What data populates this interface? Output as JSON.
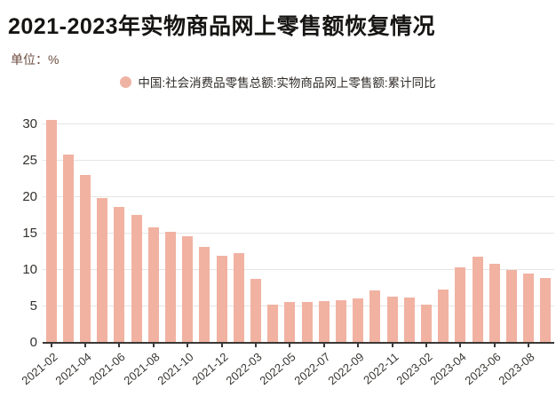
{
  "header": {
    "title": "2021-2023年实物商品网上零售额恢复情况",
    "unit_label": "单位：%"
  },
  "legend": {
    "series_label": "中国:社会消费品零售总额:实物商品网上零售额:累计同比",
    "marker_color": "#efb3a3"
  },
  "chart_data": {
    "type": "bar",
    "title": "2021-2023年实物商品网上零售额恢复情况",
    "xlabel": "",
    "ylabel": "%",
    "ylim": [
      0,
      31
    ],
    "yticks": [
      0,
      5,
      10,
      15,
      20,
      25,
      30
    ],
    "grid": true,
    "legend_position": "top",
    "bar_color": "#f1b2a2",
    "x_label_every": 2,
    "categories": [
      "2021-02",
      "2021-03",
      "2021-04",
      "2021-05",
      "2021-06",
      "2021-07",
      "2021-08",
      "2021-09",
      "2021-10",
      "2021-11",
      "2021-12",
      "2022-02",
      "2022-03",
      "2022-04",
      "2022-05",
      "2022-06",
      "2022-07",
      "2022-08",
      "2022-09",
      "2022-10",
      "2022-11",
      "2022-12",
      "2023-02",
      "2023-03",
      "2023-04",
      "2023-05",
      "2023-06",
      "2023-07",
      "2023-08",
      "2023-09"
    ],
    "values": [
      30.6,
      25.8,
      23.1,
      19.9,
      18.7,
      17.6,
      15.9,
      15.2,
      14.6,
      13.2,
      12.0,
      12.3,
      8.8,
      5.2,
      5.6,
      5.6,
      5.7,
      5.8,
      6.1,
      7.2,
      6.4,
      6.2,
      5.3,
      7.3,
      10.4,
      11.8,
      10.8,
      10.0,
      9.5,
      8.9
    ],
    "series_name": "中国:社会消费品零售总额:实物商品网上零售额:累计同比"
  }
}
